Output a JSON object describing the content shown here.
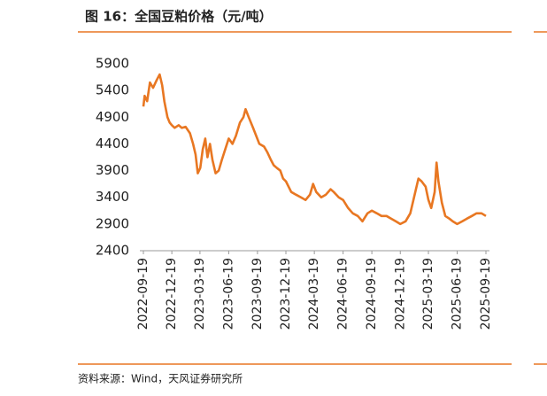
{
  "chart_data": {
    "type": "line",
    "title": "图 16：全国豆粕价格（元/吨）",
    "source": "资料来源：Wind，天风证券研究所",
    "x": [
      "2022-09-19",
      "2022-09-23",
      "2022-10-01",
      "2022-10-10",
      "2022-10-20",
      "2022-11-01",
      "2022-11-10",
      "2022-11-18",
      "2022-11-25",
      "2022-12-05",
      "2022-12-12",
      "2022-12-19",
      "2022-12-28",
      "2023-01-10",
      "2023-01-20",
      "2023-02-01",
      "2023-02-15",
      "2023-02-25",
      "2023-03-05",
      "2023-03-12",
      "2023-03-20",
      "2023-03-28",
      "2023-04-05",
      "2023-04-12",
      "2023-04-20",
      "2023-04-28",
      "2023-05-08",
      "2023-05-18",
      "2023-05-28",
      "2023-06-08",
      "2023-06-19",
      "2023-07-01",
      "2023-07-12",
      "2023-07-25",
      "2023-08-05",
      "2023-08-12",
      "2023-08-22",
      "2023-09-05",
      "2023-09-15",
      "2023-09-25",
      "2023-10-10",
      "2023-10-20",
      "2023-11-01",
      "2023-11-10",
      "2023-11-20",
      "2023-12-01",
      "2023-12-10",
      "2023-12-19",
      "2024-01-05",
      "2024-01-20",
      "2024-02-05",
      "2024-02-20",
      "2024-03-05",
      "2024-03-15",
      "2024-03-25",
      "2024-04-10",
      "2024-04-25",
      "2024-05-10",
      "2024-05-20",
      "2024-06-05",
      "2024-06-19",
      "2024-07-05",
      "2024-07-20",
      "2024-08-05",
      "2024-08-20",
      "2024-09-05",
      "2024-09-19",
      "2024-10-05",
      "2024-10-20",
      "2024-11-05",
      "2024-11-20",
      "2024-12-05",
      "2024-12-19",
      "2025-01-05",
      "2025-01-20",
      "2025-02-05",
      "2025-02-15",
      "2025-02-25",
      "2025-03-10",
      "2025-03-19",
      "2025-03-28",
      "2025-04-08",
      "2025-04-14",
      "2025-04-20",
      "2025-05-01",
      "2025-05-12",
      "2025-05-25",
      "2025-06-05",
      "2025-06-19",
      "2025-07-05",
      "2025-07-20",
      "2025-08-05",
      "2025-08-20",
      "2025-09-05",
      "2025-09-19"
    ],
    "series": [
      {
        "name": "全国豆粕价格",
        "color": "#e87722",
        "values": [
          5100,
          5300,
          5200,
          5550,
          5450,
          5600,
          5700,
          5500,
          5200,
          4900,
          4800,
          4750,
          4700,
          4750,
          4700,
          4720,
          4600,
          4400,
          4200,
          3850,
          3950,
          4300,
          4500,
          4150,
          4400,
          4100,
          3850,
          3900,
          4100,
          4300,
          4500,
          4400,
          4550,
          4800,
          4900,
          5050,
          4900,
          4700,
          4550,
          4400,
          4350,
          4250,
          4100,
          4000,
          3950,
          3900,
          3750,
          3700,
          3500,
          3450,
          3400,
          3350,
          3450,
          3650,
          3500,
          3400,
          3450,
          3550,
          3500,
          3400,
          3350,
          3200,
          3100,
          3050,
          2950,
          3100,
          3150,
          3100,
          3050,
          3050,
          3000,
          2950,
          2900,
          2950,
          3100,
          3500,
          3750,
          3700,
          3600,
          3350,
          3200,
          3500,
          4050,
          3700,
          3300,
          3050,
          3000,
          2950,
          2900,
          2950,
          3000,
          3050,
          3100,
          3100,
          3050
        ]
      }
    ],
    "xlim": [
      "2022-09-19",
      "2025-09-19"
    ],
    "xticks": [
      "2022-09-19",
      "2022-12-19",
      "2023-03-19",
      "2023-06-19",
      "2023-09-19",
      "2023-12-19",
      "2024-03-19",
      "2024-06-19",
      "2024-09-19",
      "2024-12-19",
      "2025-03-19",
      "2025-06-19",
      "2025-09-19"
    ],
    "ylim": [
      2400,
      5900
    ],
    "yticks": [
      2400,
      2900,
      3400,
      3900,
      4400,
      4900,
      5400,
      5900
    ],
    "grid": false
  }
}
